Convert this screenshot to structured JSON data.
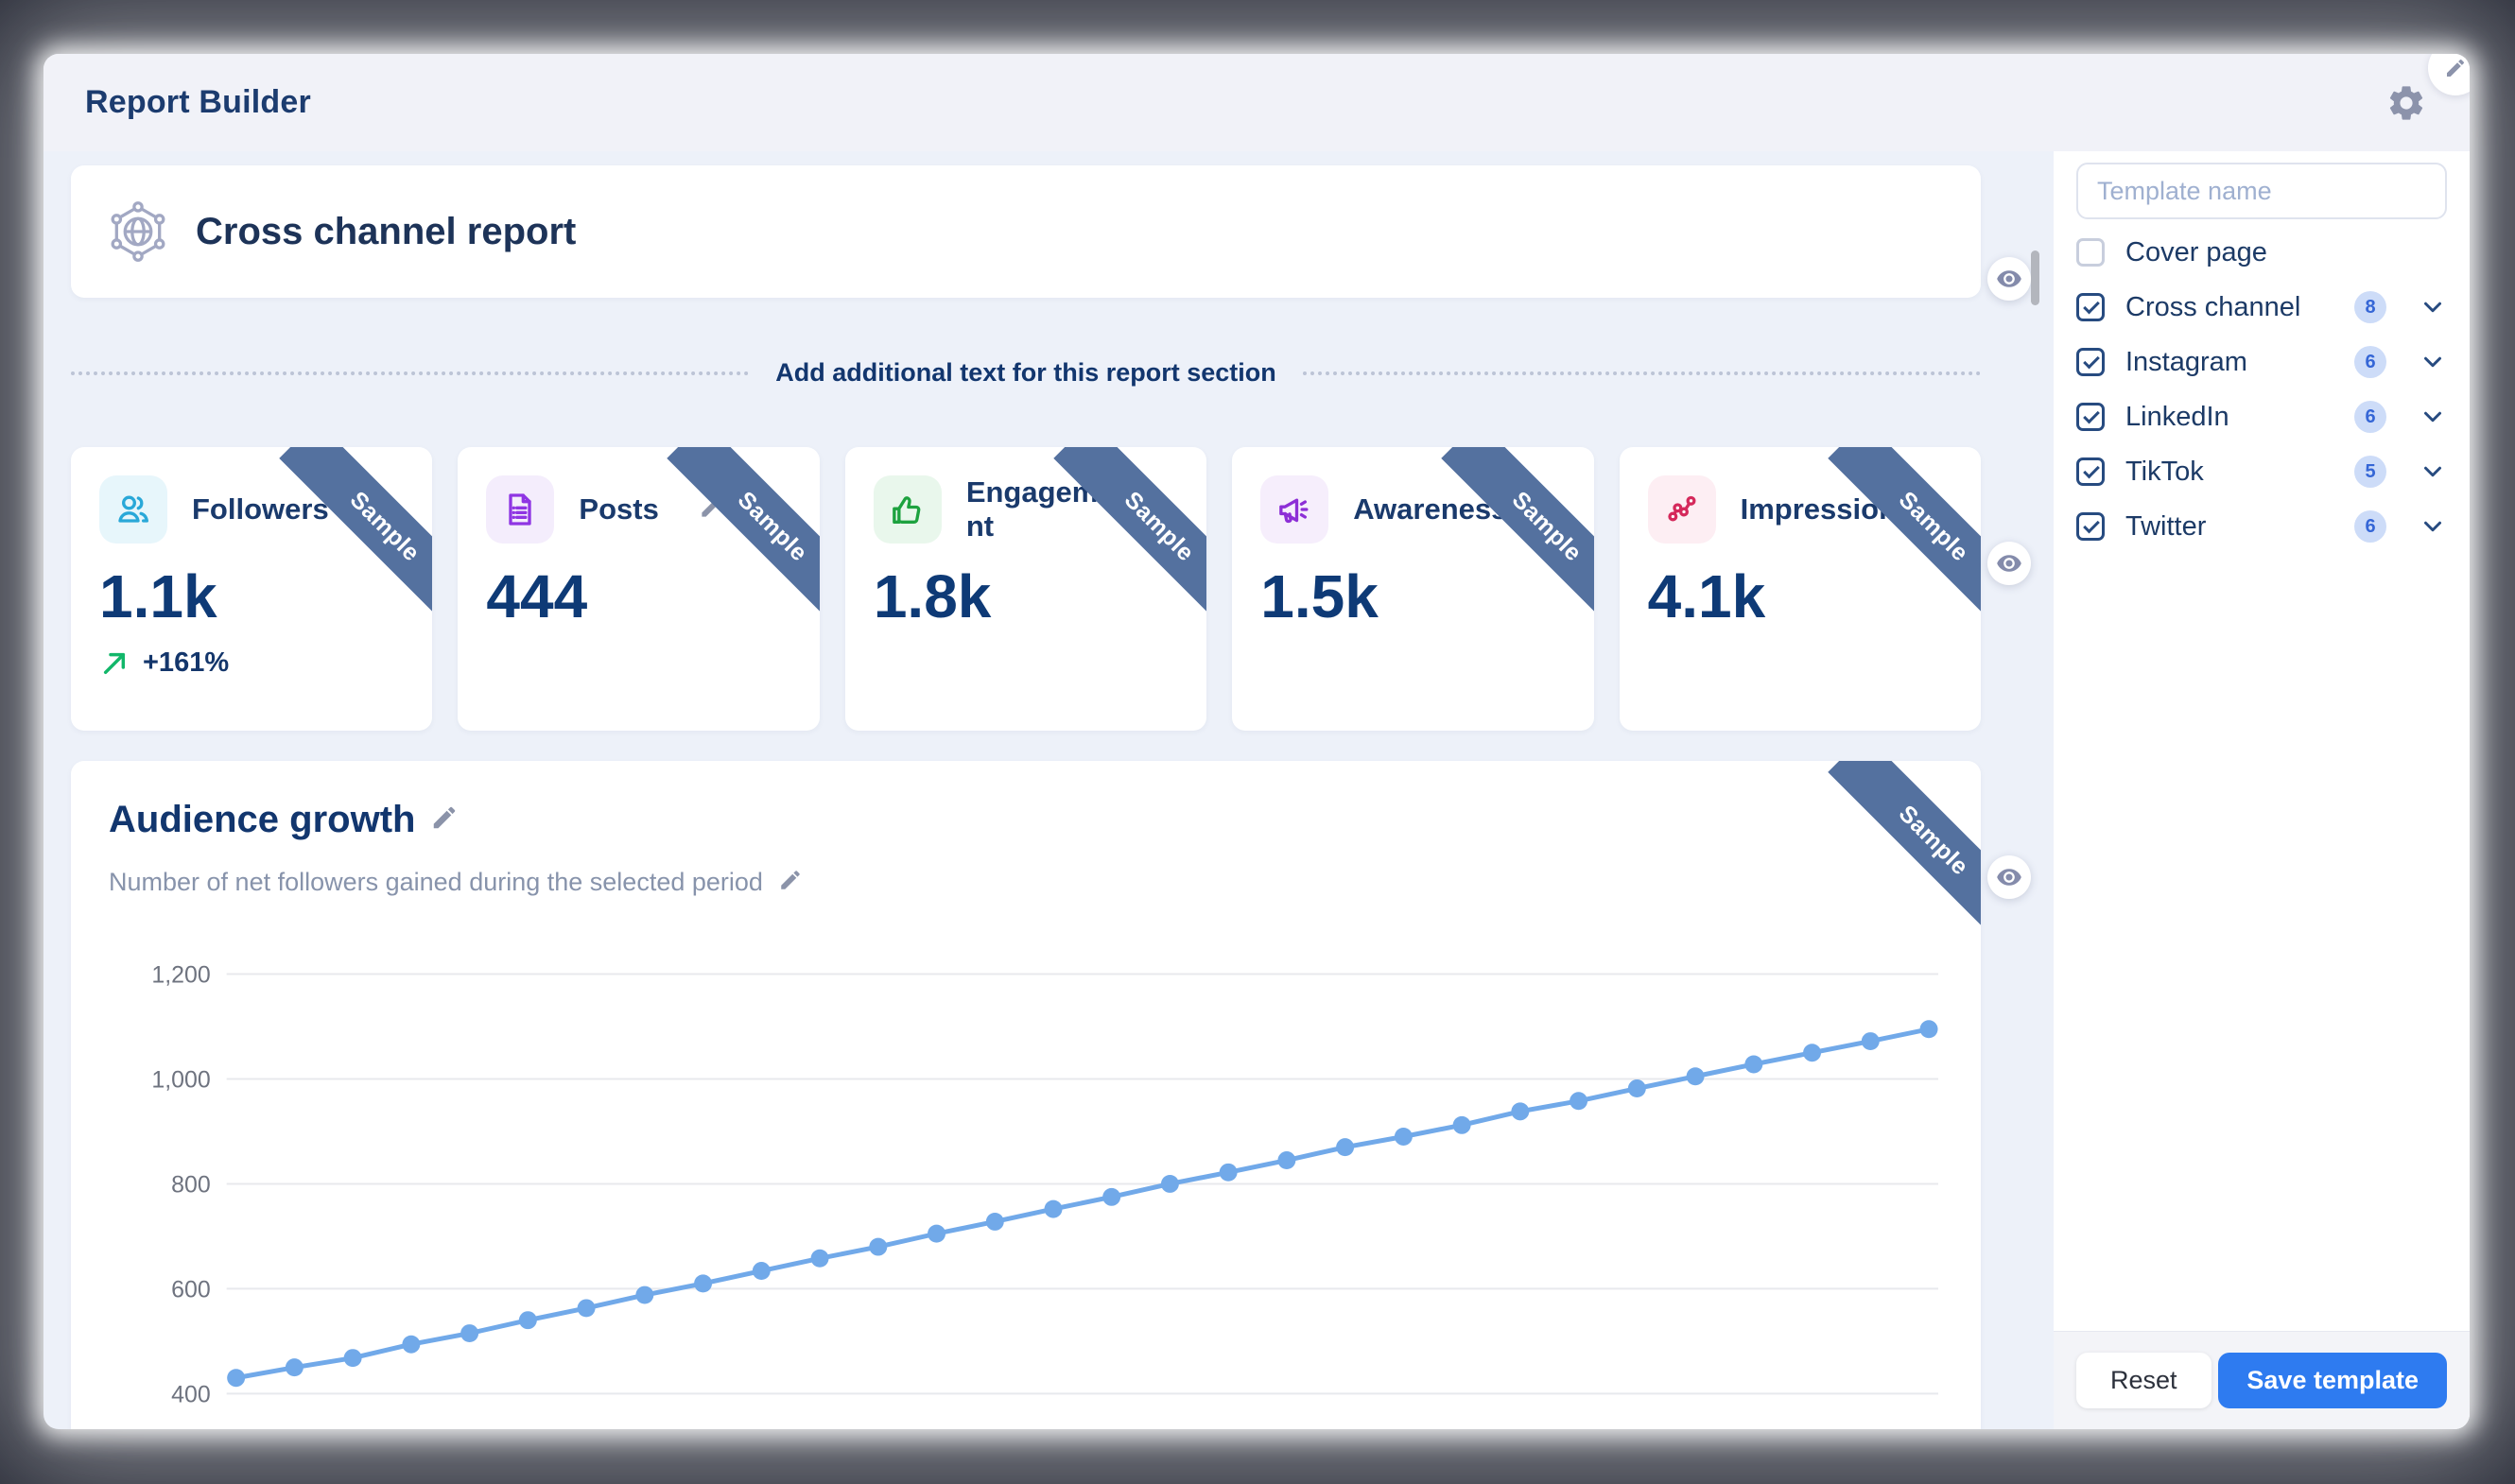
{
  "header": {
    "title": "Report Builder"
  },
  "report": {
    "title": "Cross channel report",
    "icon": "network-globe-icon"
  },
  "divider": {
    "label": "Add additional text for this report section"
  },
  "labels": {
    "sample": "Sample"
  },
  "metrics": {
    "cards": [
      {
        "title": "Followers",
        "value": "1.1k",
        "delta": "+161%",
        "icon": "users-icon",
        "icon_color": "#29a8d8",
        "tile_bg": "#e7f6fb"
      },
      {
        "title": "Posts",
        "value": "444",
        "icon": "document-icon",
        "icon_color": "#8f35e3",
        "tile_bg": "#f4edfc"
      },
      {
        "title": "Engagement",
        "value": "1.8k",
        "icon": "thumbs-up-icon",
        "icon_color": "#1da23f",
        "tile_bg": "#e9f7ec"
      },
      {
        "title": "Awareness",
        "value": "1.5k",
        "icon": "megaphone-icon",
        "icon_color": "#8d2fd6",
        "tile_bg": "#f6eefc"
      },
      {
        "title": "Impressions",
        "value": "4.1k",
        "icon": "scatter-path-icon",
        "icon_color": "#d5295b",
        "tile_bg": "#fdeef3"
      }
    ]
  },
  "chart_section": {
    "title": "Audience growth",
    "subtitle": "Number of net followers gained during the selected period"
  },
  "chart_data": {
    "type": "line",
    "title": "Audience growth",
    "xlabel": "",
    "ylabel": "",
    "ylim": [
      400,
      1200
    ],
    "grid": true,
    "legend": false,
    "x_axis_labels_visible": false,
    "yticks": [
      {
        "label": "1,200",
        "value": 1200
      },
      {
        "label": "1,000",
        "value": 1000
      },
      {
        "label": "800",
        "value": 800
      },
      {
        "label": "600",
        "value": 600
      },
      {
        "label": "400",
        "value": 400
      }
    ],
    "series": [
      {
        "name": "Net followers gained",
        "color": "#71a9e9",
        "values": [
          430,
          450,
          468,
          494,
          515,
          540,
          563,
          588,
          610,
          634,
          658,
          680,
          705,
          728,
          752,
          775,
          800,
          822,
          845,
          870,
          890,
          912,
          938,
          958,
          982,
          1005,
          1028,
          1050,
          1072,
          1095
        ]
      }
    ]
  },
  "sidebar": {
    "template_name_placeholder": "Template name",
    "items": [
      {
        "label": "Cover page",
        "checked": false
      },
      {
        "label": "Cross channel",
        "checked": true,
        "count": "8",
        "expandable": true
      },
      {
        "label": "Instagram",
        "checked": true,
        "count": "6",
        "expandable": true
      },
      {
        "label": "LinkedIn",
        "checked": true,
        "count": "6",
        "expandable": true
      },
      {
        "label": "TikTok",
        "checked": true,
        "count": "5",
        "expandable": true
      },
      {
        "label": "Twitter",
        "checked": true,
        "count": "6",
        "expandable": true
      }
    ],
    "footer": {
      "reset_label": "Reset",
      "save_label": "Save template"
    }
  },
  "colors": {
    "accent": "#2e7bf0",
    "ribbon": "#54719f",
    "badge_bg": "#cddcf8",
    "badge_text": "#3566d6",
    "line": "#71a9e9"
  }
}
